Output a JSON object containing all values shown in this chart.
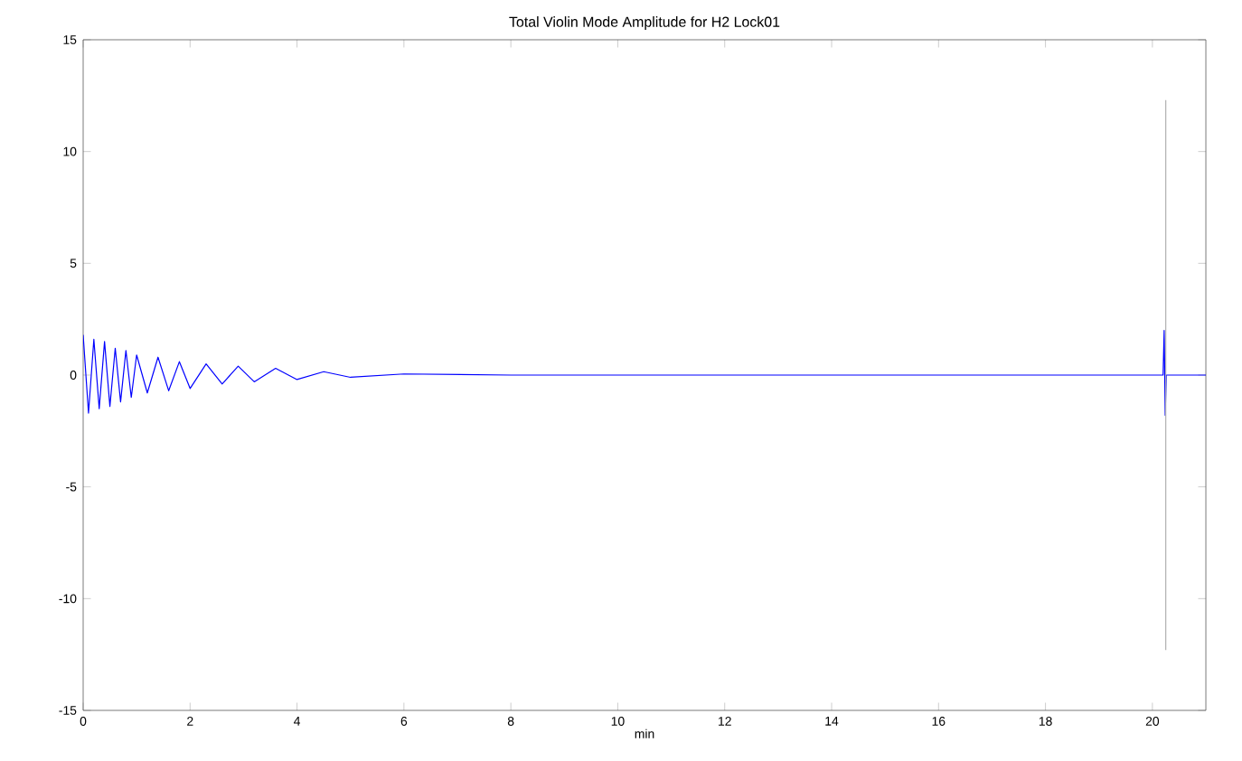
{
  "chart_data": {
    "type": "line",
    "title": "Total Violin Mode Amplitude for H2 Lock01",
    "xlabel": "min",
    "xlim": [
      0,
      21
    ],
    "xticks": [
      0,
      2,
      4,
      6,
      8,
      10,
      12,
      14,
      16,
      18,
      20
    ],
    "ylim": [
      -15,
      15
    ],
    "yticks": [
      -15,
      -10,
      -5,
      0,
      5,
      10,
      15
    ],
    "series": [
      {
        "color": "#0000ff",
        "x": [
          0,
          0.1,
          0.2,
          0.3,
          0.4,
          0.5,
          0.6,
          0.7,
          0.8,
          0.9,
          1.0,
          1.2,
          1.4,
          1.6,
          1.8,
          2.0,
          2.3,
          2.6,
          2.9,
          3.2,
          3.6,
          4.0,
          4.5,
          5.0,
          6,
          8,
          10,
          14,
          18,
          20.2,
          20.22,
          20.24,
          20.26,
          20.3,
          21
        ],
        "values": [
          1.8,
          -1.7,
          1.6,
          -1.5,
          1.5,
          -1.4,
          1.2,
          -1.2,
          1.1,
          -1.0,
          0.9,
          -0.8,
          0.8,
          -0.7,
          0.6,
          -0.6,
          0.5,
          -0.4,
          0.4,
          -0.3,
          0.3,
          -0.2,
          0.15,
          -0.1,
          0.05,
          0,
          0,
          0,
          0,
          0,
          2,
          -1.8,
          0,
          0,
          0
        ]
      },
      {
        "color": "#b0b0b0",
        "x": [
          20.25,
          20.25
        ],
        "values": [
          -12.3,
          12.3
        ]
      }
    ]
  }
}
